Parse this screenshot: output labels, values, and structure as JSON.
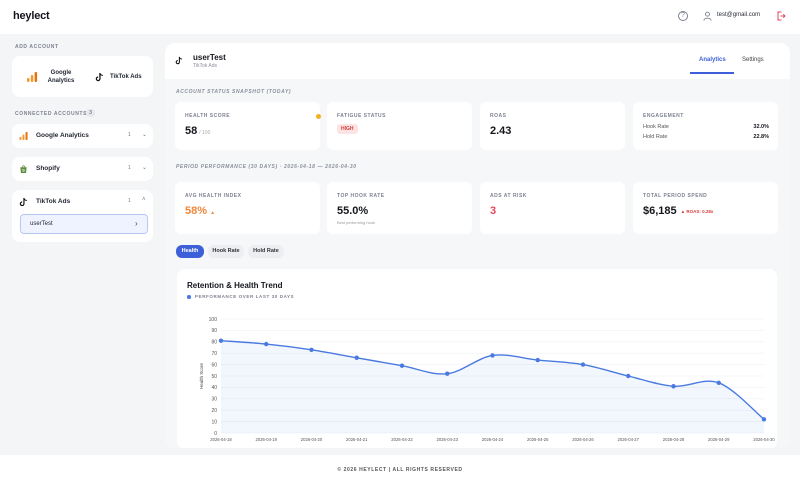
{
  "app": {
    "logo": "heylect"
  },
  "header": {
    "email": "test@gmail.com"
  },
  "sidebar": {
    "add_account_label": "ADD ACCOUNT",
    "add_options": [
      {
        "label": "Google Analytics",
        "icon": "google-analytics-icon"
      },
      {
        "label": "TikTok Ads",
        "icon": "tiktok-icon"
      }
    ],
    "connected_label": "CONNECTED ACCOUNTS",
    "connected_count": "3",
    "accounts": [
      {
        "name": "Google Analytics",
        "count": "1",
        "icon": "google-analytics-icon",
        "expanded": false
      },
      {
        "name": "Shopify",
        "count": "1",
        "icon": "shopify-icon",
        "expanded": false
      },
      {
        "name": "TikTok Ads",
        "count": "1",
        "icon": "tiktok-icon",
        "expanded": true,
        "sub_items": [
          "userTest"
        ]
      }
    ]
  },
  "main": {
    "account_name": "userTest",
    "account_platform": "TikTok Ads",
    "tabs": [
      {
        "label": "Analytics",
        "active": true
      },
      {
        "label": "Settings",
        "active": false
      }
    ],
    "snapshot_label": "ACCOUNT STATUS SNAPSHOT (TODAY)",
    "snapshot": {
      "health": {
        "label": "HEALTH SCORE",
        "value": "58",
        "suffix": "/ 100"
      },
      "fatigue": {
        "label": "FATIGUE STATUS",
        "value": "HIGH"
      },
      "roas": {
        "label": "ROAS",
        "value": "2.43"
      },
      "engagement": {
        "label": "ENGAGEMENT",
        "rows": [
          {
            "label": "Hook Rate",
            "value": "32.0%"
          },
          {
            "label": "Hold Rate",
            "value": "22.8%"
          }
        ]
      }
    },
    "period_label": "PERIOD PERFORMANCE (30 DAYS) · 2026-04-18 — 2026-04-30",
    "period": {
      "avg_health": {
        "label": "AVG HEALTH INDEX",
        "value": "58%",
        "trend": "▲"
      },
      "top_hook": {
        "label": "TOP HOOK RATE",
        "value": "55.0%",
        "note": "Best performing hook"
      },
      "ads_at_risk": {
        "label": "ADS AT RISK",
        "value": "3"
      },
      "total_spend": {
        "label": "TOTAL PERIOD SPEND",
        "value": "$6,185",
        "roas_note": "▲ ROAS: 0.28x"
      }
    },
    "metric_chips": [
      {
        "label": "Health",
        "active": true
      },
      {
        "label": "Hook Rate",
        "active": false
      },
      {
        "label": "Hold Rate",
        "active": false
      }
    ]
  },
  "chart_data": {
    "type": "line",
    "title": "Retention & Health Trend",
    "subtitle": "PERFORMANCE OVER LAST 30 DAYS",
    "ylabel": "Health Score",
    "xlabel": "",
    "ylim": [
      0,
      100
    ],
    "yticks": [
      0,
      10,
      20,
      30,
      40,
      50,
      60,
      70,
      80,
      90,
      100
    ],
    "x": [
      "2026-04-18",
      "2026-04-19",
      "2026-04-20",
      "2026-04-21",
      "2026-04-22",
      "2026-04-23",
      "2026-04-24",
      "2026-04-25",
      "2026-04-26",
      "2026-04-27",
      "2026-04-28",
      "2026-04-29",
      "2026-04-30"
    ],
    "series": [
      {
        "values": [
          81,
          78,
          73,
          66,
          59,
          52,
          68,
          64,
          60,
          50,
          41,
          44,
          12
        ]
      }
    ],
    "color": "#4a7ae0",
    "grid": true
  },
  "footer": {
    "text": "© 2026 HEYLECT | ALL RIGHTS RESERVED"
  }
}
